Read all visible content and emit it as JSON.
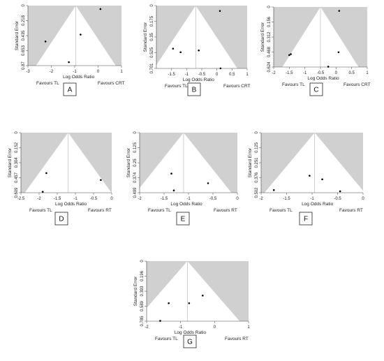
{
  "chart_data": [
    {
      "type": "scatter",
      "panel": "A",
      "xlabel": "Log Odds Ratio",
      "ylabel": "Standard Error",
      "xlim": [
        -3,
        1
      ],
      "ylim": [
        0,
        0.87
      ],
      "xticks": [
        -3,
        -2,
        -1,
        0,
        1
      ],
      "yticks": [
        0,
        0.218,
        0.435,
        0.653,
        0.87
      ],
      "center": -0.95,
      "favour_left": "Favours TL",
      "favour_right": "Favours CRT",
      "x": [
        -2.25,
        -0.75,
        -1.25,
        0.1
      ],
      "y": [
        0.52,
        0.42,
        0.82,
        0.05
      ]
    },
    {
      "type": "scatter",
      "panel": "B",
      "xlabel": "Log Odds Ratio",
      "ylabel": "Standard Error",
      "xlim": [
        -2,
        1
      ],
      "ylim": [
        0,
        0.701
      ],
      "xticks": [
        -1.5,
        -1,
        -0.5,
        0,
        0.5,
        1
      ],
      "yticks": [
        0,
        0.175,
        0.35,
        0.525,
        0.701
      ],
      "center": -0.7,
      "favour_left": "Favours TL",
      "favour_right": "Favours CRT",
      "x": [
        -1.45,
        -1.2,
        -0.6,
        0.1,
        0.12
      ],
      "y": [
        0.48,
        0.52,
        0.5,
        0.06,
        0.7
      ]
    },
    {
      "type": "scatter",
      "panel": "C",
      "xlabel": "Log Odds Ratio",
      "ylabel": "Standard Error",
      "xlim": [
        -2,
        1
      ],
      "ylim": [
        0,
        0.624
      ],
      "xticks": [
        -2,
        -1.5,
        -1,
        -0.5,
        0,
        0.5,
        1
      ],
      "yticks": [
        0,
        0.156,
        0.312,
        0.468,
        0.624
      ],
      "center": -0.5,
      "favour_left": "Favours TL",
      "favour_right": "Favours CRT",
      "x": [
        -1.5,
        -1.45,
        0.1,
        0.08,
        -0.25
      ],
      "y": [
        0.5,
        0.49,
        0.04,
        0.47,
        0.62
      ]
    },
    {
      "type": "scatter",
      "panel": "D",
      "xlabel": "Log Odds Ratio",
      "ylabel": "Standard Error",
      "xlim": [
        -2.5,
        0
      ],
      "ylim": [
        0,
        0.609
      ],
      "xticks": [
        -2.5,
        -2,
        -1.5,
        -1,
        -0.5,
        0
      ],
      "yticks": [
        0,
        0.152,
        0.304,
        0.457,
        0.609
      ],
      "center": -1.2,
      "favour_left": "Favours TL",
      "favour_right": "Favours RT",
      "x": [
        -1.8,
        -0.3,
        -1.9
      ],
      "y": [
        0.41,
        0.48,
        0.6
      ]
    },
    {
      "type": "scatter",
      "panel": "E",
      "xlabel": "Log Odds Ratio",
      "ylabel": "Standard Error",
      "xlim": [
        -2,
        0
      ],
      "ylim": [
        0,
        0.499
      ],
      "xticks": [
        -2,
        -1.5,
        -1,
        -0.5,
        0
      ],
      "yticks": [
        0,
        0.125,
        0.25,
        0.374,
        0.499
      ],
      "center": -1.1,
      "favour_left": "Favours TL",
      "favour_right": "Favours RT",
      "x": [
        -1.35,
        -0.6,
        -1.3
      ],
      "y": [
        0.34,
        0.42,
        0.48
      ]
    },
    {
      "type": "scatter",
      "panel": "F",
      "xlabel": "Log Odds Ratio",
      "ylabel": "Standard Error",
      "xlim": [
        -2,
        0
      ],
      "ylim": [
        0,
        0.502
      ],
      "xticks": [
        -2,
        -1.5,
        -1,
        -0.5,
        0
      ],
      "yticks": [
        0,
        0.125,
        0.251,
        0.376,
        0.502
      ],
      "center": -0.95,
      "favour_left": "Favours TL",
      "favour_right": "Favours RT",
      "x": [
        -1.75,
        -1.05,
        -0.8,
        -0.45
      ],
      "y": [
        0.48,
        0.36,
        0.39,
        0.49
      ]
    },
    {
      "type": "scatter",
      "panel": "G",
      "xlabel": "Log Odds Ratio",
      "ylabel": "Standard Error",
      "xlim": [
        -2,
        1
      ],
      "ylim": [
        0,
        0.785
      ],
      "xticks": [
        -2,
        -1,
        0,
        1
      ],
      "yticks": [
        0,
        0.196,
        0.393,
        0.589,
        0.785
      ],
      "center": -0.8,
      "favour_left": "Favours TL",
      "favour_right": "Favours RT",
      "x": [
        -1.35,
        -0.75,
        -0.35,
        -1.6
      ],
      "y": [
        0.55,
        0.55,
        0.45,
        0.78
      ]
    }
  ]
}
